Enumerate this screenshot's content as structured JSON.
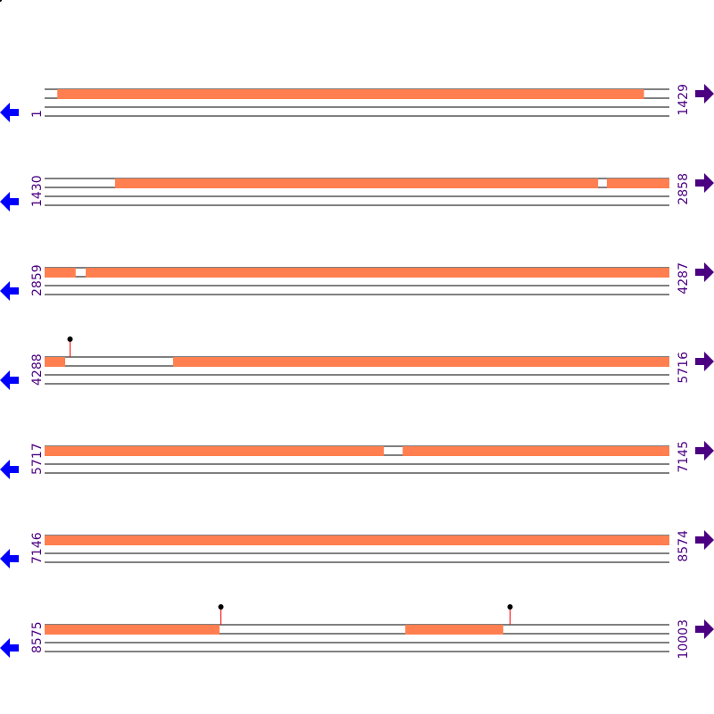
{
  "bases_per_row": 1429,
  "colors": {
    "feature": "#ff7f50",
    "label": "#4b0082",
    "left_arrow": "#0000ff",
    "right_arrow": "#4b0082",
    "lollipop_stem": "#ff0000",
    "lollipop_head": "#000000",
    "line": "#000000"
  },
  "icons": {
    "left": "arrow-left-icon",
    "right": "arrow-right-icon"
  },
  "rows": [
    {
      "start": "1",
      "end": "1429",
      "s": 1,
      "e": 1429,
      "features": [
        [
          30,
          1372
        ]
      ],
      "lollipops": []
    },
    {
      "start": "1430",
      "end": "2858",
      "s": 1430,
      "e": 2858,
      "features": [
        [
          1591,
          2696
        ],
        [
          2716,
          2858
        ]
      ],
      "lollipops": []
    },
    {
      "start": "2859",
      "end": "4287",
      "s": 2859,
      "e": 4287,
      "features": [
        [
          2859,
          2930
        ],
        [
          2953,
          4287
        ]
      ],
      "lollipops": []
    },
    {
      "start": "4288",
      "end": "5716",
      "s": 4288,
      "e": 5716,
      "features": [
        [
          4288,
          4335
        ],
        [
          4582,
          5716
        ]
      ],
      "lollipops": [
        4345
      ]
    },
    {
      "start": "5717",
      "end": "7145",
      "s": 5717,
      "e": 7145,
      "features": [
        [
          5717,
          6493
        ],
        [
          6536,
          7145
        ]
      ],
      "lollipops": []
    },
    {
      "start": "7146",
      "end": "8574",
      "s": 7146,
      "e": 8574,
      "features": [
        [
          7146,
          8574
        ]
      ],
      "lollipops": []
    },
    {
      "start": "8575",
      "end": "10003",
      "s": 8575,
      "e": 10003,
      "features": [
        [
          8575,
          8975
        ],
        [
          9400,
          9624
        ]
      ],
      "lollipops": [
        8977,
        9638
      ]
    }
  ]
}
